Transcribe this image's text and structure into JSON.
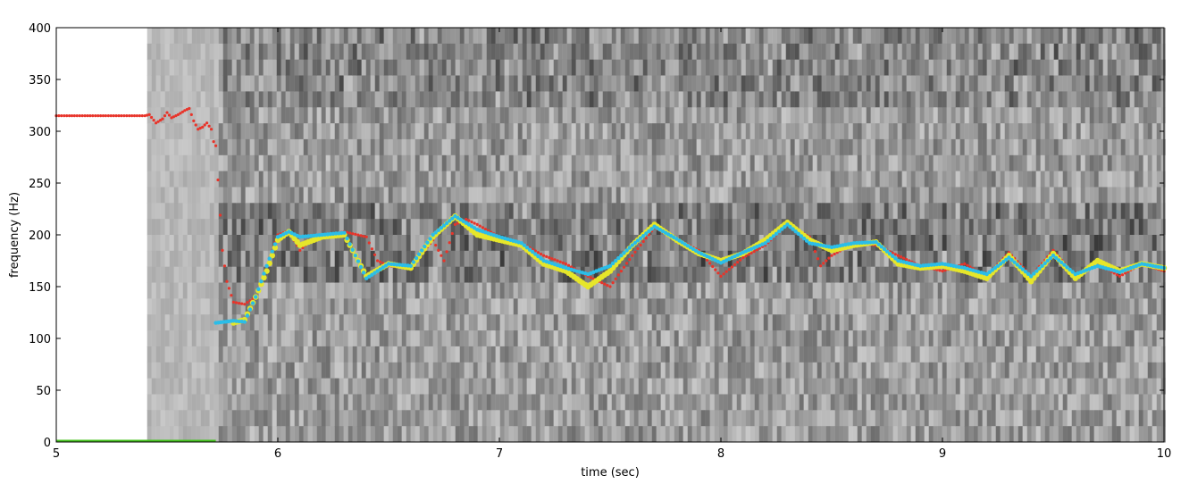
{
  "chart_data": {
    "type": "scatter",
    "title": "",
    "xlabel": "time (sec)",
    "ylabel": "frequency (Hz)",
    "xlim": [
      5,
      10
    ],
    "ylim": [
      0,
      400
    ],
    "xticks": [
      "5",
      "6",
      "7",
      "8",
      "9",
      "10"
    ],
    "yticks": [
      "0",
      "50",
      "100",
      "150",
      "200",
      "250",
      "300",
      "350",
      "400"
    ],
    "background": "grayscale spectrogram",
    "colors": {
      "red_series": "#e8342a",
      "yellow_series": "#e6e62a",
      "cyan_series": "#2bbde8",
      "green_baseline": "#44c21e"
    },
    "series": [
      {
        "color": "red",
        "points": [
          [
            5.0,
            315
          ],
          [
            5.2,
            315
          ],
          [
            5.4,
            315
          ],
          [
            5.42,
            316
          ],
          [
            5.45,
            308
          ],
          [
            5.48,
            312
          ],
          [
            5.5,
            318
          ],
          [
            5.52,
            313
          ],
          [
            5.55,
            316
          ],
          [
            5.58,
            320
          ],
          [
            5.6,
            322
          ],
          [
            5.62,
            310
          ],
          [
            5.64,
            302
          ],
          [
            5.66,
            304
          ],
          [
            5.68,
            308
          ],
          [
            5.7,
            302
          ],
          [
            5.71,
            290
          ],
          [
            5.72,
            286
          ],
          [
            5.73,
            253
          ],
          [
            5.75,
            185
          ],
          [
            5.77,
            155
          ],
          [
            5.8,
            135
          ],
          [
            5.85,
            133
          ],
          [
            5.9,
            140
          ],
          [
            5.95,
            170
          ],
          [
            6.0,
            200
          ],
          [
            6.05,
            204
          ],
          [
            6.1,
            185
          ],
          [
            6.15,
            195
          ],
          [
            6.2,
            199
          ],
          [
            6.3,
            203
          ],
          [
            6.4,
            198
          ],
          [
            6.45,
            175
          ],
          [
            6.5,
            170
          ],
          [
            6.6,
            168
          ],
          [
            6.7,
            195
          ],
          [
            6.75,
            175
          ],
          [
            6.8,
            210
          ],
          [
            6.85,
            215
          ],
          [
            6.9,
            210
          ],
          [
            7.0,
            198
          ],
          [
            7.1,
            192
          ],
          [
            7.2,
            180
          ],
          [
            7.3,
            172
          ],
          [
            7.4,
            160
          ],
          [
            7.5,
            150
          ],
          [
            7.6,
            180
          ],
          [
            7.7,
            207
          ],
          [
            7.8,
            196
          ],
          [
            7.9,
            185
          ],
          [
            8.0,
            160
          ],
          [
            8.1,
            178
          ],
          [
            8.2,
            190
          ],
          [
            8.3,
            210
          ],
          [
            8.4,
            198
          ],
          [
            8.45,
            170
          ],
          [
            8.5,
            180
          ],
          [
            8.6,
            192
          ],
          [
            8.7,
            190
          ],
          [
            8.8,
            180
          ],
          [
            8.9,
            170
          ],
          [
            9.0,
            165
          ],
          [
            9.1,
            172
          ],
          [
            9.2,
            160
          ],
          [
            9.3,
            183
          ],
          [
            9.4,
            160
          ],
          [
            9.5,
            185
          ],
          [
            9.6,
            160
          ],
          [
            9.7,
            172
          ],
          [
            9.8,
            160
          ],
          [
            9.9,
            172
          ],
          [
            10.0,
            165
          ]
        ]
      },
      {
        "color": "yellow",
        "points": [
          [
            5.8,
            115
          ],
          [
            5.85,
            118
          ],
          [
            5.9,
            140
          ],
          [
            5.95,
            165
          ],
          [
            6.0,
            195
          ],
          [
            6.05,
            203
          ],
          [
            6.1,
            190
          ],
          [
            6.2,
            198
          ],
          [
            6.3,
            200
          ],
          [
            6.4,
            160
          ],
          [
            6.5,
            172
          ],
          [
            6.6,
            168
          ],
          [
            6.7,
            198
          ],
          [
            6.8,
            218
          ],
          [
            6.9,
            200
          ],
          [
            7.0,
            195
          ],
          [
            7.1,
            190
          ],
          [
            7.2,
            172
          ],
          [
            7.3,
            165
          ],
          [
            7.4,
            150
          ],
          [
            7.5,
            165
          ],
          [
            7.6,
            190
          ],
          [
            7.7,
            210
          ],
          [
            7.8,
            195
          ],
          [
            7.9,
            182
          ],
          [
            8.0,
            175
          ],
          [
            8.1,
            182
          ],
          [
            8.2,
            195
          ],
          [
            8.3,
            212
          ],
          [
            8.4,
            195
          ],
          [
            8.5,
            185
          ],
          [
            8.6,
            190
          ],
          [
            8.7,
            193
          ],
          [
            8.8,
            172
          ],
          [
            8.9,
            168
          ],
          [
            9.0,
            170
          ],
          [
            9.1,
            165
          ],
          [
            9.2,
            158
          ],
          [
            9.3,
            180
          ],
          [
            9.4,
            155
          ],
          [
            9.5,
            182
          ],
          [
            9.6,
            158
          ],
          [
            9.7,
            175
          ],
          [
            9.8,
            165
          ],
          [
            9.9,
            172
          ],
          [
            10.0,
            168
          ]
        ]
      },
      {
        "color": "cyan",
        "points": [
          [
            5.72,
            115
          ],
          [
            5.8,
            117
          ],
          [
            5.85,
            116
          ],
          [
            5.9,
            140
          ],
          [
            5.95,
            170
          ],
          [
            6.0,
            198
          ],
          [
            6.05,
            203
          ],
          [
            6.1,
            198
          ],
          [
            6.2,
            200
          ],
          [
            6.3,
            202
          ],
          [
            6.4,
            158
          ],
          [
            6.5,
            172
          ],
          [
            6.6,
            170
          ],
          [
            6.7,
            200
          ],
          [
            6.8,
            218
          ],
          [
            6.9,
            205
          ],
          [
            7.0,
            198
          ],
          [
            7.1,
            192
          ],
          [
            7.2,
            175
          ],
          [
            7.3,
            168
          ],
          [
            7.4,
            162
          ],
          [
            7.5,
            170
          ],
          [
            7.6,
            190
          ],
          [
            7.7,
            208
          ],
          [
            7.8,
            196
          ],
          [
            7.9,
            183
          ],
          [
            8.0,
            173
          ],
          [
            8.1,
            183
          ],
          [
            8.2,
            192
          ],
          [
            8.3,
            210
          ],
          [
            8.4,
            192
          ],
          [
            8.5,
            188
          ],
          [
            8.6,
            192
          ],
          [
            8.7,
            193
          ],
          [
            8.8,
            175
          ],
          [
            8.9,
            170
          ],
          [
            9.0,
            172
          ],
          [
            9.1,
            168
          ],
          [
            9.2,
            162
          ],
          [
            9.3,
            178
          ],
          [
            9.4,
            160
          ],
          [
            9.5,
            180
          ],
          [
            9.6,
            162
          ],
          [
            9.7,
            170
          ],
          [
            9.8,
            164
          ],
          [
            9.9,
            172
          ],
          [
            10.0,
            168
          ]
        ]
      }
    ]
  }
}
